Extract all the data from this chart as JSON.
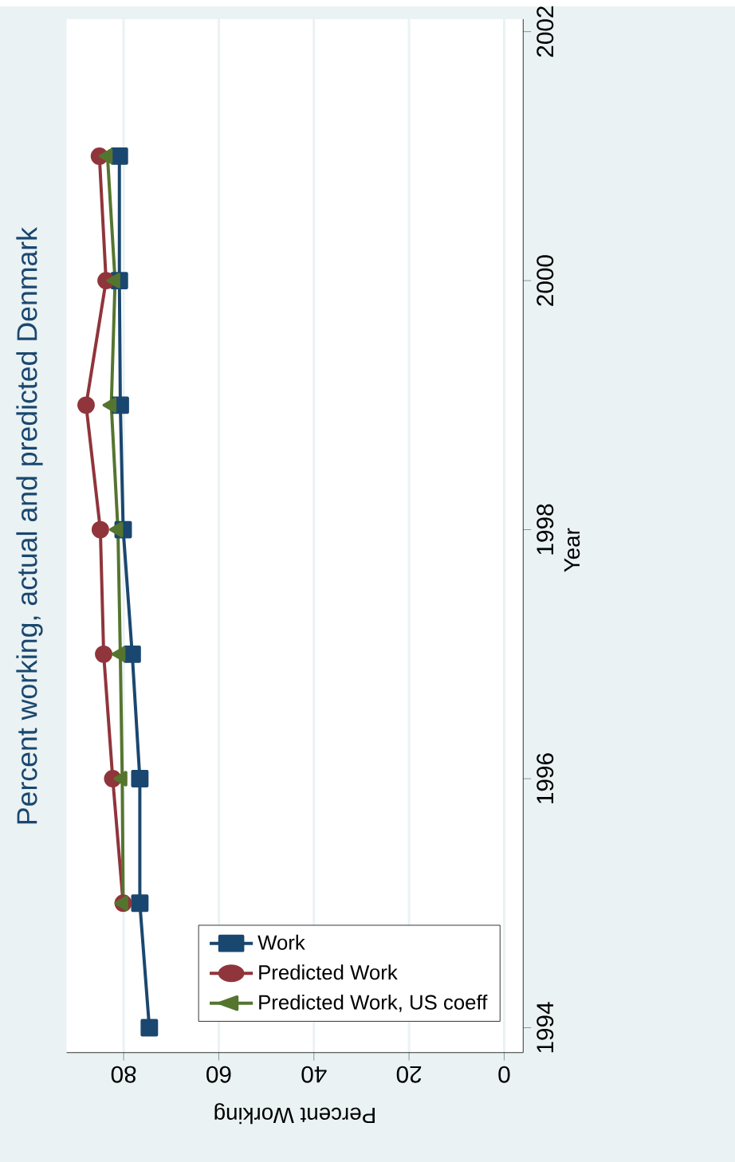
{
  "chart_data": {
    "type": "line",
    "title": "Percent working, actual and predicted Denmark",
    "xlabel": "Percent Working",
    "ylabel": "Year",
    "series": [
      {
        "name": "Work",
        "color": "#1a476f",
        "marker": "square",
        "x": [
          74.6,
          76.6,
          76.6,
          78.2,
          80.1,
          80.7,
          80.9,
          80.9
        ],
        "values": [
          1994,
          1995,
          1996,
          1997,
          1998,
          1999,
          2000,
          2001
        ]
      },
      {
        "name": "Predicted Work",
        "color": "#90353b",
        "marker": "circle",
        "x": [
          80.1,
          82.3,
          84.2,
          84.9,
          87.9,
          83.7,
          85.1
        ],
        "values": [
          1995,
          1996,
          1997,
          1998,
          1999,
          2000,
          2001
        ]
      },
      {
        "name": "Predicted Work, US coeff",
        "color": "#55752f",
        "marker": "triangle",
        "x": [
          80.1,
          80.3,
          80.7,
          81.2,
          82.6,
          81.8,
          83.4
        ],
        "values": [
          1995,
          1996,
          1997,
          1998,
          1999,
          2000,
          2001
        ]
      }
    ],
    "xlim": [
      92,
      -4
    ],
    "ylim": [
      1993.8,
      2002.1
    ],
    "xticks": [
      80,
      60,
      40,
      20,
      0
    ],
    "yticks": [
      1994,
      1996,
      1998,
      2000,
      2002
    ],
    "grid": "x",
    "legend": "bottom right"
  }
}
